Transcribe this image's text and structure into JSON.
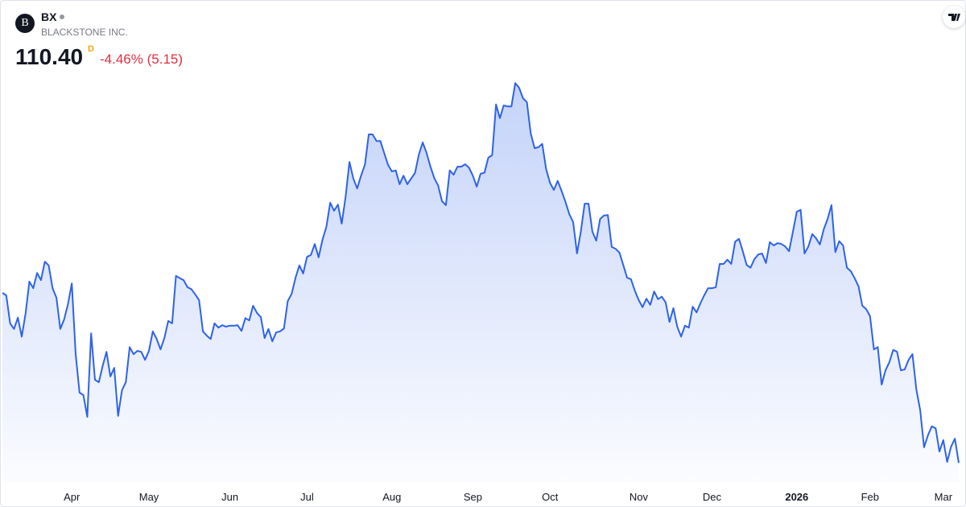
{
  "header": {
    "logo": "B",
    "symbol": "BX",
    "name": "BLACKSTONE INC.",
    "price": "110.40",
    "interval": "D",
    "change_pct": "-4.46%",
    "change": "(5.15)"
  },
  "chart_data": {
    "type": "area",
    "color": "#2d62ea",
    "values": [
      146.2,
      145.7,
      139.8,
      138.6,
      141.0,
      137.0,
      141.8,
      148.6,
      147.2,
      150.4,
      148.9,
      152.8,
      152.0,
      147.2,
      145.2,
      138.6,
      140.6,
      143.8,
      148.2,
      133.3,
      125.2,
      124.7,
      120.1,
      137.7,
      127.9,
      127.4,
      130.8,
      133.8,
      128.6,
      130.4,
      120.3,
      125.7,
      127.4,
      134.8,
      133.3,
      134.0,
      133.8,
      132.1,
      134.0,
      138.1,
      136.5,
      134.3,
      136.7,
      140.3,
      139.8,
      149.8,
      149.3,
      148.9,
      147.4,
      147.0,
      145.9,
      144.7,
      138.1,
      137.2,
      136.5,
      139.8,
      138.9,
      139.4,
      139.1,
      139.3,
      139.3,
      139.4,
      138.2,
      140.9,
      140.4,
      143.5,
      142.0,
      141.1,
      136.7,
      138.6,
      136.0,
      137.9,
      138.1,
      138.7,
      144.5,
      146.0,
      149.4,
      152.0,
      150.3,
      153.8,
      154.2,
      156.5,
      153.7,
      157.4,
      160.1,
      165.2,
      163.5,
      164.8,
      160.8,
      166.4,
      173.8,
      170.3,
      168.2,
      170.9,
      173.2,
      179.6,
      179.6,
      178.2,
      178.2,
      175.7,
      173.2,
      171.8,
      172.0,
      169.1,
      170.9,
      169.1,
      170.3,
      171.5,
      175.4,
      177.9,
      175.7,
      172.8,
      170.4,
      168.8,
      165.5,
      164.7,
      172.0,
      171.1,
      172.8,
      172.8,
      173.3,
      172.6,
      170.9,
      168.6,
      171.3,
      171.5,
      174.7,
      175.2,
      185.9,
      183.0,
      185.7,
      185.5,
      185.5,
      190.4,
      189.4,
      187.2,
      186.4,
      179.8,
      176.7,
      176.9,
      177.6,
      172.3,
      169.4,
      167.9,
      169.8,
      167.7,
      165.4,
      162.8,
      161.1,
      154.5,
      159.1,
      165.0,
      165.0,
      159.1,
      157.2,
      161.8,
      162.5,
      162.6,
      155.9,
      155.5,
      154.7,
      152.1,
      149.4,
      149.1,
      146.7,
      144.7,
      143.2,
      145.0,
      143.7,
      146.5,
      144.9,
      145.4,
      144.2,
      140.1,
      143.0,
      139.1,
      137.0,
      139.3,
      138.9,
      143.3,
      142.1,
      144.0,
      145.7,
      147.2,
      147.2,
      147.4,
      152.3,
      152.3,
      153.2,
      152.3,
      157.0,
      157.6,
      155.0,
      152.1,
      151.5,
      153.3,
      154.3,
      154.5,
      152.5,
      156.9,
      156.2,
      156.7,
      156.5,
      156.0,
      155.0,
      159.1,
      163.3,
      163.7,
      154.5,
      156.0,
      158.6,
      157.7,
      156.4,
      159.6,
      161.8,
      164.7,
      154.8,
      157.1,
      156.2,
      151.5,
      150.8,
      149.3,
      147.6,
      143.5,
      142.8,
      141.3,
      134.3,
      134.8,
      126.9,
      129.9,
      131.6,
      134.2,
      133.8,
      129.9,
      130.1,
      132.1,
      133.3,
      125.9,
      121.5,
      113.7,
      116.2,
      118.1,
      117.7,
      112.8,
      115.2,
      110.6,
      113.8,
      115.5,
      110.4
    ],
    "xlim": [
      0,
      248
    ],
    "xticks": [
      {
        "value": 18,
        "label": "Apr"
      },
      {
        "value": 38,
        "label": "May"
      },
      {
        "value": 59,
        "label": "Jun"
      },
      {
        "value": 79,
        "label": "Jul"
      },
      {
        "value": 101,
        "label": "Aug"
      },
      {
        "value": 122,
        "label": "Sep"
      },
      {
        "value": 142,
        "label": "Oct"
      },
      {
        "value": 165,
        "label": "Nov"
      },
      {
        "value": 184,
        "label": "Dec"
      },
      {
        "value": 206,
        "label": "2026"
      },
      {
        "value": 225,
        "label": "Feb"
      },
      {
        "value": 244,
        "label": "Mar"
      }
    ],
    "ylim": [
      106.2,
      207.9
    ]
  }
}
